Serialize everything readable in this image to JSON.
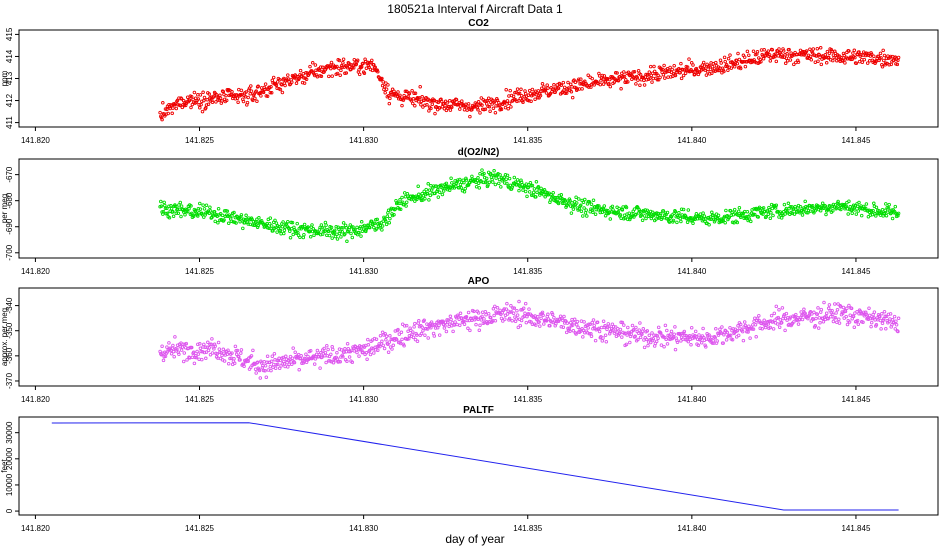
{
  "figure": {
    "title": "180521a   Interval f Aircraft Data 1",
    "xlabel": "day of year"
  },
  "x_axis": {
    "xlim": [
      141.8195,
      141.8475
    ],
    "ticks": [
      141.82,
      141.825,
      141.83,
      141.835,
      141.84,
      141.845
    ],
    "tick_labels": [
      "141.820",
      "141.825",
      "141.830",
      "141.835",
      "141.840",
      "141.845"
    ]
  },
  "chart_data": [
    {
      "type": "scatter",
      "title": "CO2",
      "ylabel": "ppm",
      "ylim": [
        410.8,
        415.2
      ],
      "yticks": [
        411,
        412,
        413,
        414,
        415
      ],
      "ytick_labels": [
        "411",
        "412",
        "413",
        "414",
        "415"
      ],
      "color": "#ee0000",
      "x_range": [
        141.8238,
        141.8463
      ],
      "trend_x": [
        141.8238,
        141.8245,
        141.8265,
        141.8275,
        141.829,
        141.8303,
        141.8308,
        141.832,
        141.8335,
        141.835,
        141.837,
        141.839,
        141.841,
        141.8425,
        141.8445,
        141.8463
      ],
      "trend_y": [
        411.3,
        412.0,
        412.2,
        412.8,
        413.5,
        413.6,
        412.3,
        411.9,
        411.7,
        412.3,
        412.8,
        413.2,
        413.6,
        414.1,
        414.0,
        413.9
      ],
      "noise": 0.28
    },
    {
      "type": "scatter",
      "title": "d(O2/N2)",
      "ylabel": "per meg",
      "ylim": [
        -702,
        -664
      ],
      "yticks": [
        -700,
        -690,
        -680,
        -670
      ],
      "ytick_labels": [
        "-700",
        "-690",
        "-680",
        "-670"
      ],
      "color": "#00dd00",
      "x_range": [
        141.8238,
        141.8463
      ],
      "trend_x": [
        141.8238,
        141.8255,
        141.8265,
        141.828,
        141.8295,
        141.8305,
        141.8312,
        141.8325,
        141.834,
        141.8352,
        141.8368,
        141.8385,
        141.8405,
        141.8425,
        141.8445,
        141.8463
      ],
      "trend_y": [
        -683,
        -685,
        -688,
        -691,
        -692,
        -689,
        -680,
        -675,
        -671,
        -676,
        -683,
        -685,
        -687,
        -684,
        -682,
        -685
      ],
      "noise": 2.2
    },
    {
      "type": "scatter",
      "title": "APO",
      "ylabel": "approx. per meg",
      "ylim": [
        -372,
        -333
      ],
      "yticks": [
        -370,
        -360,
        -350,
        -340
      ],
      "ytick_labels": [
        "-370",
        "-360",
        "-350",
        "-340"
      ],
      "color": "#dd55ee",
      "x_range": [
        141.8238,
        141.8463
      ],
      "trend_x": [
        141.8238,
        141.8255,
        141.8268,
        141.8285,
        141.83,
        141.8315,
        141.833,
        141.8345,
        141.8365,
        141.8385,
        141.8405,
        141.8425,
        141.8445,
        141.8463
      ],
      "trend_y": [
        -358,
        -357,
        -364,
        -361,
        -358,
        -350,
        -346,
        -343,
        -348,
        -352,
        -353,
        -346,
        -343,
        -347
      ],
      "noise": 3.2
    },
    {
      "type": "line",
      "title": "PALTF",
      "ylabel": "feet",
      "ylim": [
        -1500,
        36000
      ],
      "yticks": [
        0,
        10000,
        20000,
        30000
      ],
      "ytick_labels": [
        "0",
        "10000",
        "20000",
        "30000"
      ],
      "color": "#2222ee",
      "x": [
        141.8205,
        141.8265,
        141.8428,
        141.8463
      ],
      "y": [
        33700,
        33800,
        400,
        400
      ]
    }
  ]
}
